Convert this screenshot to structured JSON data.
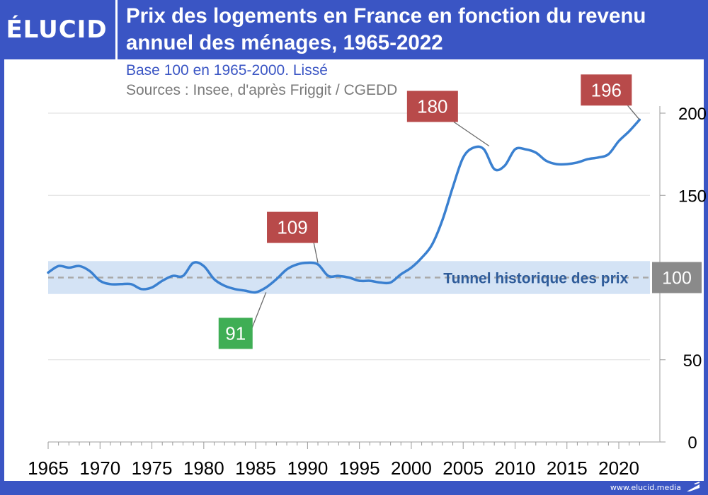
{
  "header": {
    "logo": "ÉLUCID",
    "title_line1": "Prix des logements en France en fonction du revenu",
    "title_line2": "annuel des ménages, 1965-2022",
    "subtitle": "Base 100 en 1965-2000. Lissé",
    "sources": "Sources : Insee, d'après Friggit / CGEDD"
  },
  "footer": {
    "url": "www.elucid.media"
  },
  "colors": {
    "brand": "#3a55c4",
    "line": "#3a80d0",
    "band": "#d4e3f5",
    "red_label": "#b84a4a",
    "green_label": "#3fae55",
    "grey_label": "#8a8a8a",
    "tunnel_text": "#2f5c9a"
  },
  "chart_data": {
    "type": "line",
    "title": "Prix des logements en France en fonction du revenu annuel des ménages, 1965-2022",
    "subtitle": "Base 100 en 1965-2000. Lissé",
    "xlim": [
      1965,
      2023
    ],
    "ylim": [
      0,
      200
    ],
    "x_ticks": [
      1965,
      1970,
      1975,
      1980,
      1985,
      1990,
      1995,
      2000,
      2005,
      2010,
      2015,
      2020
    ],
    "y_ticks": [
      0,
      50,
      150,
      200
    ],
    "y_axis_side": "right",
    "grid": true,
    "tunnel": {
      "label": "Tunnel historique des prix",
      "low": 90,
      "high": 110,
      "reference": 100,
      "reference_label": "100"
    },
    "series": [
      {
        "x": [
          1965,
          1966,
          1967,
          1968,
          1969,
          1970,
          1971,
          1972,
          1973,
          1974,
          1975,
          1976,
          1977,
          1978,
          1979,
          1980,
          1981,
          1982,
          1983,
          1984,
          1985,
          1986,
          1987,
          1988,
          1989,
          1990,
          1991,
          1992,
          1993,
          1994,
          1995,
          1996,
          1997,
          1998,
          1999,
          2000,
          2001,
          2002,
          2003,
          2004,
          2005,
          2006,
          2007,
          2008,
          2009,
          2010,
          2011,
          2012,
          2013,
          2014,
          2015,
          2016,
          2017,
          2018,
          2019,
          2020,
          2021,
          2022
        ],
        "values": [
          103,
          107,
          106,
          107,
          104,
          98,
          96,
          96,
          96,
          93,
          94,
          98,
          101,
          101,
          109,
          107,
          99,
          95,
          93,
          92,
          91,
          94,
          99,
          105,
          108,
          109,
          108,
          101,
          101,
          100,
          98,
          98,
          97,
          97,
          102,
          106,
          112,
          120,
          135,
          155,
          173,
          179,
          178,
          166,
          168,
          178,
          178,
          176,
          171,
          169,
          169,
          170,
          172,
          173,
          175,
          183,
          189,
          196
        ]
      }
    ],
    "annotations": [
      {
        "label": "109",
        "x": 1991,
        "y": 109,
        "style": "red"
      },
      {
        "label": "91",
        "x": 1986,
        "y": 91,
        "style": "green"
      },
      {
        "label": "180",
        "x": 2007.5,
        "y": 180,
        "style": "red"
      },
      {
        "label": "196",
        "x": 2022,
        "y": 196,
        "style": "red"
      }
    ]
  }
}
